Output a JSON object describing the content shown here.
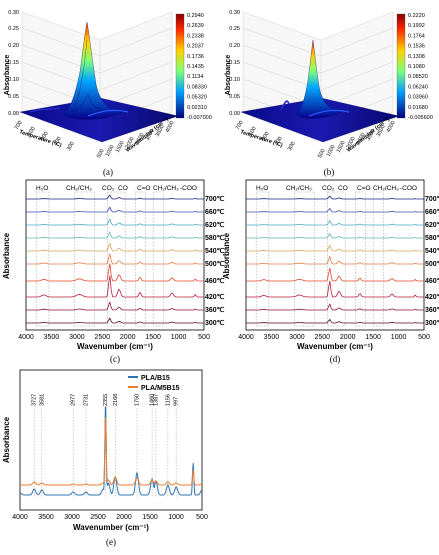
{
  "panels": [
    {
      "id": "a",
      "caption": "(a)",
      "type": "3d-surface",
      "z_label": "Absorbance",
      "x_label": "Temperature (°C)",
      "y_label": "Wavenumber (cm⁻¹)",
      "z_ticks": [
        "0.00",
        "0.05",
        "0.10",
        "0.15",
        "0.20",
        "0.25",
        "0.30"
      ],
      "temp_ticks": [
        "700",
        "600",
        "500",
        "400",
        "300"
      ],
      "wn_ticks": [
        "500",
        "1000",
        "1500",
        "2000",
        "2500",
        "3000",
        "3500",
        "4000"
      ],
      "colorbar": [
        "0.2940",
        "0.2639",
        "0.2338",
        "0.2037",
        "0.1736",
        "0.1435",
        "0.1134",
        "0.08330",
        "0.05320",
        "0.02310",
        "-0.007000"
      ]
    },
    {
      "id": "b",
      "caption": "(b)",
      "type": "3d-surface",
      "z_label": "Absorbance",
      "x_label": "Temperature (°C)",
      "y_label": "Wavenumber (cm⁻¹)",
      "z_ticks": [
        "0.00",
        "0.05",
        "0.10",
        "0.15",
        "0.20",
        "0.25",
        "0.30"
      ],
      "temp_ticks": [
        "700",
        "600",
        "500",
        "400",
        "300"
      ],
      "wn_ticks": [
        "500",
        "1000",
        "1500",
        "2000",
        "2500",
        "3000",
        "3500",
        "4000"
      ],
      "colorbar": [
        "0.2220",
        "0.1992",
        "0.1764",
        "0.1536",
        "0.1308",
        "0.1080",
        "0.08520",
        "0.06240",
        "0.03960",
        "0.01680",
        "-0.005600"
      ]
    }
  ],
  "stack_panels": [
    {
      "id": "c",
      "caption": "(c)",
      "xlabel": "Wavenumber (cm⁻¹)",
      "ylabel": "Absorbance",
      "xticks": [
        "4000",
        "3500",
        "3000",
        "2500",
        "2000",
        "1500",
        "1000",
        "500"
      ],
      "bands": [
        "H₂O",
        "CH₂/CH₃",
        "CO₂",
        "CO",
        "C=O",
        "CH₂/CH₃",
        "-COO"
      ],
      "temps": [
        "700℃",
        "660℃",
        "620℃",
        "580℃",
        "540℃",
        "500℃",
        "460℃",
        "420℃",
        "360℃",
        "300℃"
      ]
    },
    {
      "id": "d",
      "caption": "(d)",
      "xlabel": "Wavenumber (cm⁻¹)",
      "ylabel": "Absorbance",
      "xticks": [
        "4000",
        "3500",
        "3000",
        "2500",
        "2000",
        "1500",
        "1000",
        "500"
      ],
      "bands": [
        "H₂O",
        "CH₂/CH₃",
        "CO₂",
        "CO",
        "C=O",
        "CH₂/CH₃",
        "-COO"
      ],
      "temps": [
        "700℃",
        "660℃",
        "620℃",
        "580℃",
        "540℃",
        "500℃",
        "460℃",
        "420℃",
        "360℃",
        "300℃"
      ]
    }
  ],
  "panel_e": {
    "caption": "(e)",
    "xlabel": "Wavenumber (cm⁻¹)",
    "ylabel": "Absorbance",
    "xticks": [
      "4000",
      "3500",
      "3000",
      "2500",
      "2000",
      "1500",
      "1000",
      "500"
    ],
    "legend": [
      "PLA/B15",
      "PLA/M5B15"
    ],
    "peaks": [
      "3727",
      "3581",
      "2977",
      "2731",
      "2355",
      "2168",
      "1750",
      "1460",
      "1387",
      "1156",
      "997"
    ]
  },
  "colors": {
    "series1": "#2e75b6",
    "series2": "#ed7d31"
  },
  "chart_data": [
    {
      "type": "line",
      "title": "",
      "xlabel": "Wavenumber (cm⁻¹)",
      "ylabel": "Absorbance",
      "xlim": [
        4000,
        500
      ],
      "series": [
        {
          "name": "PLA/B15",
          "x": [
            4000,
            3727,
            3581,
            2977,
            2731,
            2400,
            2355,
            2300,
            2168,
            1750,
            1460,
            1387,
            1156,
            997,
            670,
            500
          ],
          "y": [
            0.02,
            0.06,
            0.05,
            0.03,
            0.03,
            0.06,
            0.95,
            0.12,
            0.18,
            0.22,
            0.16,
            0.14,
            0.1,
            0.08,
            0.32,
            0.05
          ]
        },
        {
          "name": "PLA/M5B15",
          "x": [
            4000,
            3727,
            3581,
            2977,
            2731,
            2400,
            2355,
            2300,
            2168,
            1750,
            1460,
            1387,
            1156,
            997,
            670,
            500
          ],
          "y": [
            0.0,
            0.03,
            0.02,
            0.01,
            0.01,
            0.02,
            0.72,
            0.05,
            0.08,
            0.07,
            0.05,
            0.04,
            0.03,
            0.02,
            0.15,
            0.01
          ]
        }
      ]
    }
  ]
}
